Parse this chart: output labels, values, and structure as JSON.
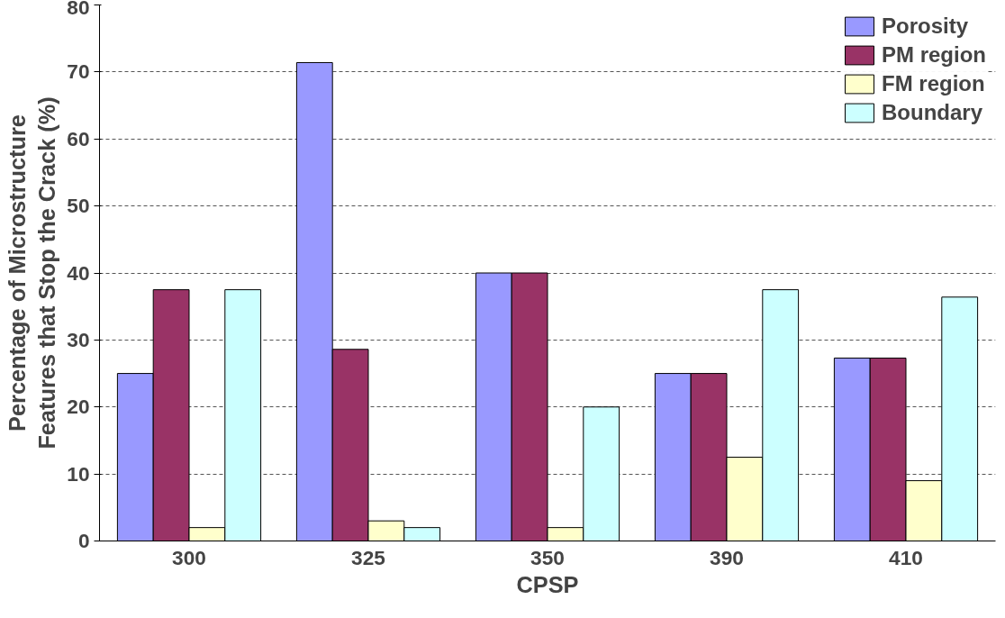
{
  "chart_data": {
    "type": "bar",
    "xlabel": "CPSP",
    "ylabel": "Percentage of Microstructure\nFeatures that Stop the Crack (%)",
    "categories": [
      "300",
      "325",
      "350",
      "390",
      "410"
    ],
    "series": [
      {
        "name": "Porosity",
        "color": "#9999ff",
        "values": [
          25,
          71.4,
          40,
          25,
          27.3
        ]
      },
      {
        "name": "PM region",
        "color": "#993366",
        "values": [
          37.5,
          28.6,
          40,
          25,
          27.3
        ]
      },
      {
        "name": "FM region",
        "color": "#ffffcc",
        "values": [
          2,
          3,
          2,
          12.5,
          9
        ]
      },
      {
        "name": "Boundary",
        "color": "#ccffff",
        "values": [
          37.5,
          2,
          20,
          37.5,
          36.4
        ]
      }
    ],
    "ylim": [
      0,
      80
    ],
    "yticks": [
      0,
      10,
      20,
      30,
      40,
      50,
      60,
      70,
      80
    ],
    "grid": "y",
    "legend": "top right"
  }
}
